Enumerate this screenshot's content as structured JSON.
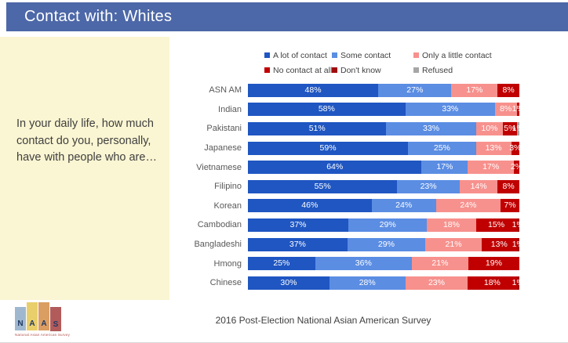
{
  "header": {
    "title": "Contact with: Whites",
    "bg_color": "#4d68a8"
  },
  "side_panel": {
    "bg_color": "#faf5d2",
    "question": "In your daily life, how much contact do you, personally, have with people who are…"
  },
  "chart_data": {
    "type": "bar",
    "orientation": "horizontal-stacked",
    "xlim": [
      0,
      100
    ],
    "value_suffix": "%",
    "legend_position": "top",
    "grid": false,
    "categories": [
      "ASN AM",
      "Indian",
      "Pakistani",
      "Japanese",
      "Vietnamese",
      "Filipino",
      "Korean",
      "Cambodian",
      "Bangladeshi",
      "Hmong",
      "Chinese"
    ],
    "series": [
      {
        "name": "A lot of contact",
        "color": "#1f56c2",
        "values": [
          48,
          58,
          51,
          59,
          64,
          55,
          46,
          37,
          37,
          25,
          30
        ]
      },
      {
        "name": "Some contact",
        "color": "#5b8de3",
        "values": [
          27,
          33,
          33,
          25,
          17,
          23,
          24,
          29,
          29,
          36,
          28
        ]
      },
      {
        "name": "Only a little contact",
        "color": "#f7918d",
        "values": [
          17,
          8,
          10,
          13,
          17,
          14,
          24,
          18,
          21,
          21,
          23
        ]
      },
      {
        "name": "No contact at all",
        "color": "#c00000",
        "values": [
          8,
          1,
          5,
          3,
          2,
          8,
          7,
          15,
          13,
          19,
          18
        ]
      },
      {
        "name": "Don't know",
        "color": "#9e0b0c",
        "values": [
          0,
          0,
          0,
          0,
          0,
          0,
          0,
          1,
          1,
          0,
          1
        ]
      },
      {
        "name": "Refused",
        "color": "#a6a6a6",
        "values": [
          0,
          0,
          1,
          0,
          0,
          0,
          0,
          0,
          0,
          0,
          0
        ]
      }
    ]
  },
  "footer": {
    "source": "2016 Post-Election National Asian American Survey"
  },
  "logo": {
    "letters": [
      "N",
      "A",
      "A",
      "S"
    ],
    "bar_colors": [
      "#9fb8cf",
      "#e9cf6b",
      "#db9e62",
      "#b25b5b"
    ],
    "bar_offsets": [
      6,
      0,
      0,
      6
    ],
    "bar_heights": [
      30,
      36,
      36,
      31
    ],
    "caption": "National Asian American Survey"
  }
}
